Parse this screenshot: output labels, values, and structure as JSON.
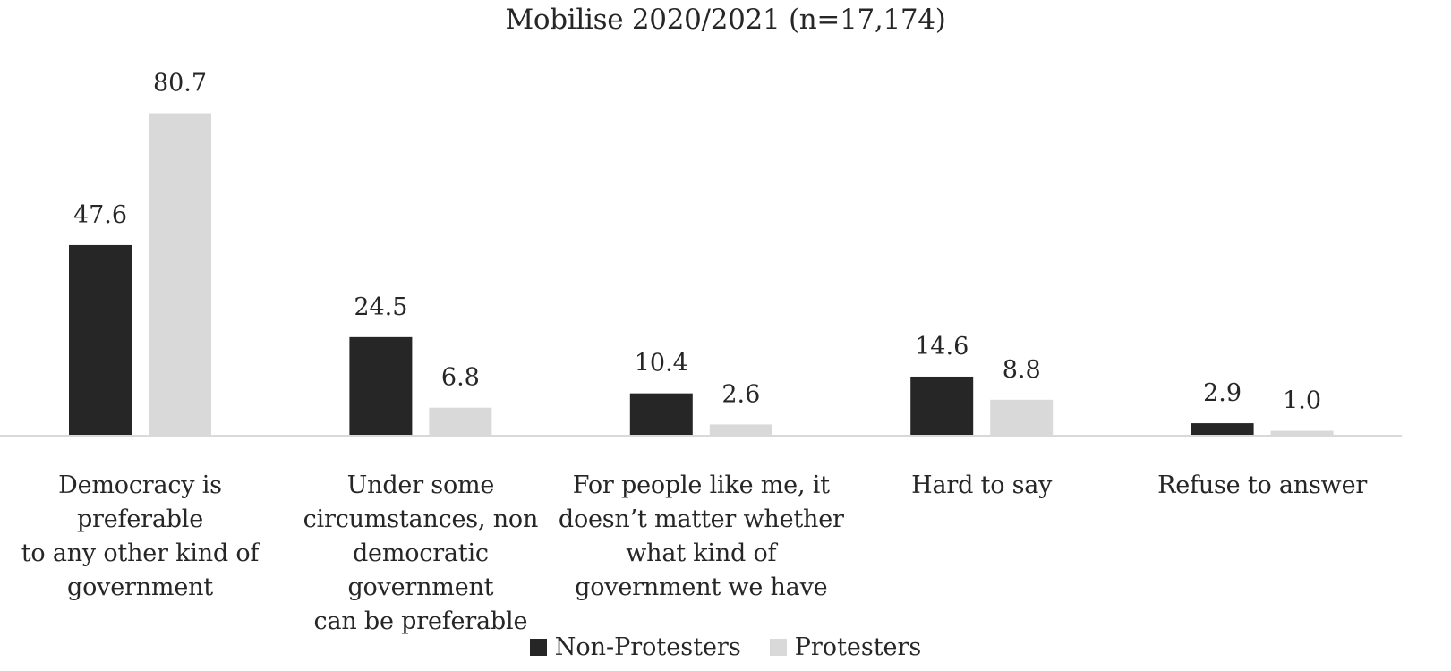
{
  "chart_data": {
    "type": "bar",
    "title": "Mobilise 2020/2021 (n=17,174)",
    "categories": [
      "Democracy is preferable to any other kind of government",
      "Under some circumstances, non democratic government can be preferable",
      "For people like me, it doesn’t matter whether what kind of government we have",
      "Hard to say",
      "Refuse to answer"
    ],
    "category_lines": [
      [
        "Democracy is preferable",
        "to any other kind of",
        "government"
      ],
      [
        "Under some",
        "circumstances, non",
        "democratic government",
        "can be preferable"
      ],
      [
        "For people like me, it",
        "doesn’t matter whether",
        "what kind of",
        "government we have"
      ],
      [
        "Hard to say"
      ],
      [
        "Refuse to answer"
      ]
    ],
    "series": [
      {
        "name": "Non-Protesters",
        "color": "#262626",
        "values": [
          47.6,
          24.5,
          10.4,
          14.6,
          2.9
        ]
      },
      {
        "name": "Protesters",
        "color": "#d9d9d9",
        "values": [
          80.7,
          6.8,
          2.6,
          8.8,
          1.0
        ]
      }
    ],
    "ylim": [
      0,
      100
    ],
    "grid": false,
    "legend_position": "bottom",
    "xlabel": "",
    "ylabel": ""
  }
}
